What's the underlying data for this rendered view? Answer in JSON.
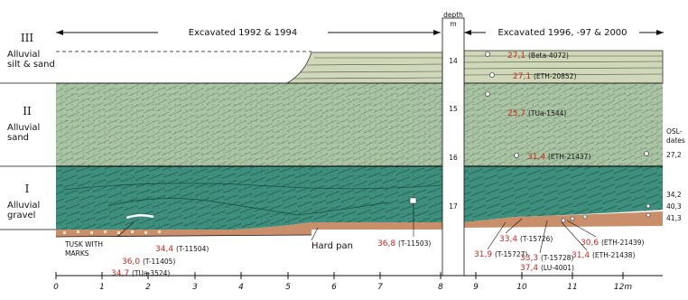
{
  "header": {
    "left": "Excavated 1992 & 1994",
    "right": "Excavated 1996, -97 & 2000",
    "depth": "depth",
    "depth_unit": "m"
  },
  "units": [
    {
      "roman": "III",
      "name": "Alluvial silt & sand"
    },
    {
      "roman": "II",
      "name": "Alluvial sand"
    },
    {
      "roman": "I",
      "name": "Alluvial gravel"
    }
  ],
  "depth_ticks": [
    "14",
    "15",
    "16",
    "17"
  ],
  "x_ticks": [
    "0",
    "1",
    "2",
    "3",
    "4",
    "5",
    "6",
    "7",
    "8",
    "9",
    "10",
    "11",
    "12m"
  ],
  "labels": {
    "tusk": "TUSK WITH MARKS",
    "hardpan": "Hard pan",
    "osl": "OSL-dates"
  },
  "dates": [
    {
      "value": "27,1",
      "lab": "(Beta-4072)"
    },
    {
      "value": "27,1",
      "lab": "(ETH-20852)"
    },
    {
      "value": "25,7",
      "lab": "(TUa-1544)"
    },
    {
      "value": "31,4",
      "lab": "(ETH-21437)"
    },
    {
      "value": "36,0",
      "lab": "(T-11405)"
    },
    {
      "value": "34,4",
      "lab": "(T-11504)"
    },
    {
      "value": "34,7",
      "lab": "(TUa-3524)"
    },
    {
      "value": "36,8",
      "lab": "(T-11503)"
    },
    {
      "value": "33,4",
      "lab": "(T-15726)"
    },
    {
      "value": "31,9",
      "lab": "(T-15727)"
    },
    {
      "value": "33,3",
      "lab": "(T-15728)"
    },
    {
      "value": "37,4",
      "lab": "(LU-4001)"
    },
    {
      "value": "30,6",
      "lab": "(ETH-21439)"
    },
    {
      "value": "31,4",
      "lab": "(ETH-21438)"
    }
  ],
  "osl_dates": [
    "27,2",
    "34,2",
    "40,3",
    "41,3"
  ],
  "colors": {
    "unit3": "#cfd9ba",
    "unit2": "#a9c3a3",
    "unit1": "#3e8f7d",
    "hardpan": "#c98e6a",
    "red": "#c8281e"
  }
}
